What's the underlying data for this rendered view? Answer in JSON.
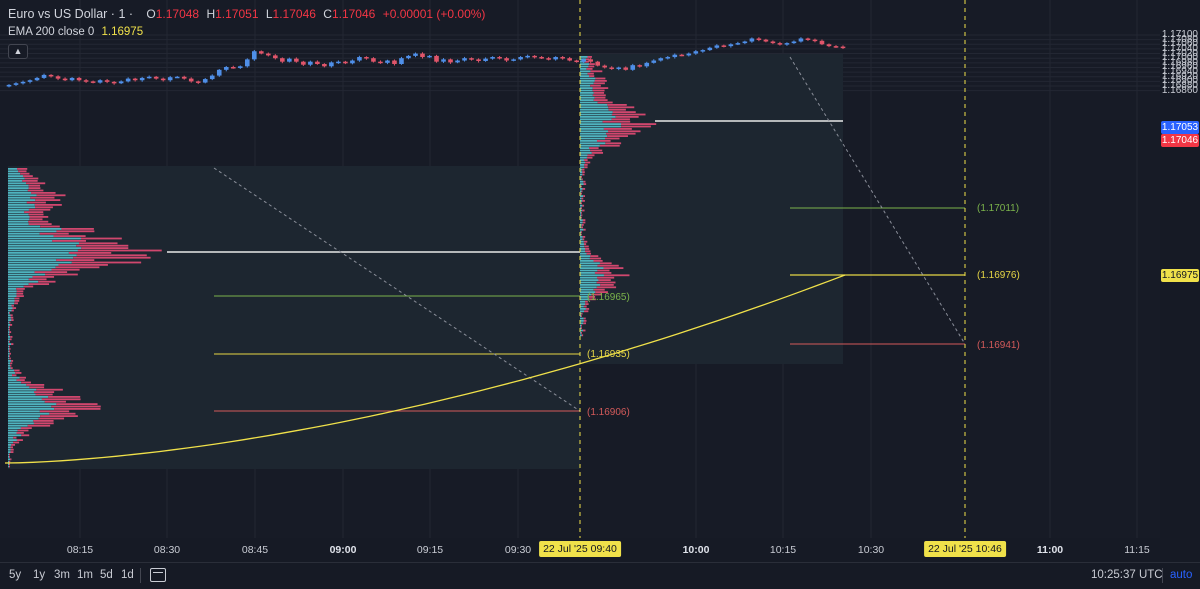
{
  "header": {
    "symbol": "Euro vs US Dollar · 1 ·",
    "o_label": "O",
    "o": "1.17048",
    "h_label": "H",
    "h": "1.17051",
    "l_label": "L",
    "l": "1.17046",
    "c_label": "C",
    "c": "1.17046",
    "change": "+0.00001 (+0.00%)"
  },
  "indicator": {
    "label": "EMA 200 close 0",
    "value": "1.16975"
  },
  "price_axis": {
    "ticks": [
      "1.17100",
      "1.17080",
      "1.17060",
      "1.17040",
      "1.17020",
      "1.17000",
      "1.16980",
      "1.16960",
      "1.16940",
      "1.16920",
      "1.16900",
      "1.16880",
      "1.16860"
    ],
    "tags": {
      "ask": "1.17053",
      "last": "1.17046",
      "ema": "1.16975"
    }
  },
  "time_axis": {
    "ticks": [
      "08:15",
      "08:30",
      "08:45",
      "09:00",
      "09:15",
      "09:30",
      "10:00",
      "10:15",
      "10:30",
      "11:00",
      "11:15"
    ],
    "tag1": "22 Jul '25   09:40",
    "tag2": "22 Jul '25   10:46"
  },
  "levels": {
    "l1": "(1.16965)",
    "l2": "(1.16935)",
    "l3": "(1.16906)",
    "r1": "(1.17011)",
    "r2": "(1.16976)",
    "r3": "(1.16941)"
  },
  "toolbar": {
    "timeframes": [
      "5y",
      "1y",
      "3m",
      "1m",
      "5d",
      "1d"
    ],
    "calendar_icon": "calendar-icon",
    "clock": "10:25:37 UTC",
    "auto": "auto"
  },
  "colors": {
    "bg": "#171b26",
    "up": "#4f8fe8",
    "down": "#e0556a",
    "ema": "#f0e14a",
    "vp_up": "#4fb3bf",
    "vp_down": "#d1476e",
    "green_level": "#7bb34b",
    "red_level": "#d35a5a",
    "yellow_level": "#e6d645"
  },
  "chart_data": {
    "type": "candlestick",
    "title": "Euro vs US Dollar · 1",
    "ylim": [
      1.16845,
      1.17115
    ],
    "close": [
      1.16885,
      1.16892,
      1.16898,
      1.16905,
      1.16915,
      1.16928,
      1.16922,
      1.16912,
      1.16905,
      1.16915,
      1.16905,
      1.169,
      1.16895,
      1.16905,
      1.16898,
      1.16892,
      1.169,
      1.16912,
      1.16905,
      1.16915,
      1.1692,
      1.16912,
      1.16905,
      1.16918,
      1.1692,
      1.16912,
      1.169,
      1.16895,
      1.1691,
      1.16925,
      1.1695,
      1.16962,
      1.16958,
      1.16965,
      1.16995,
      1.1703,
      1.1702,
      1.17012,
      1.17,
      1.16985,
      1.16998,
      1.16985,
      1.16972,
      1.16985,
      1.16975,
      1.16965,
      1.16982,
      1.16985,
      1.16978,
      1.1699,
      1.17005,
      1.17,
      1.16985,
      1.1698,
      1.1699,
      1.16975,
      1.17,
      1.1701,
      1.1702,
      1.17005,
      1.1701,
      1.16985,
      1.16995,
      1.16982,
      1.1699,
      1.17,
      1.16995,
      1.16988,
      1.16998,
      1.17005,
      1.17,
      1.1699,
      1.16995,
      1.17005,
      1.1701,
      1.17005,
      1.17,
      1.16995,
      1.17005,
      1.17,
      1.1699,
      1.16985,
      1.16995,
      1.16985,
      1.16968,
      1.1696,
      1.16955,
      1.1696,
      1.1695,
      1.1697,
      1.16965,
      1.1698,
      1.1699,
      1.17,
      1.17005,
      1.17015,
      1.17012,
      1.1702,
      1.1703,
      1.17035,
      1.17045,
      1.17055,
      1.17052,
      1.1706,
      1.17065,
      1.17072,
      1.17085,
      1.1708,
      1.17072,
      1.17065,
      1.1706,
      1.17065,
      1.17072,
      1.17085,
      1.1708,
      1.17075,
      1.1706,
      1.17052,
      1.1705,
      1.17046
    ],
    "ema200": [
      1.16877,
      1.1694,
      1.16975
    ],
    "levels": [
      1.16965,
      1.16935,
      1.16906,
      1.17011,
      1.16976,
      1.16941
    ],
    "xlabel": "",
    "ylabel": ""
  }
}
